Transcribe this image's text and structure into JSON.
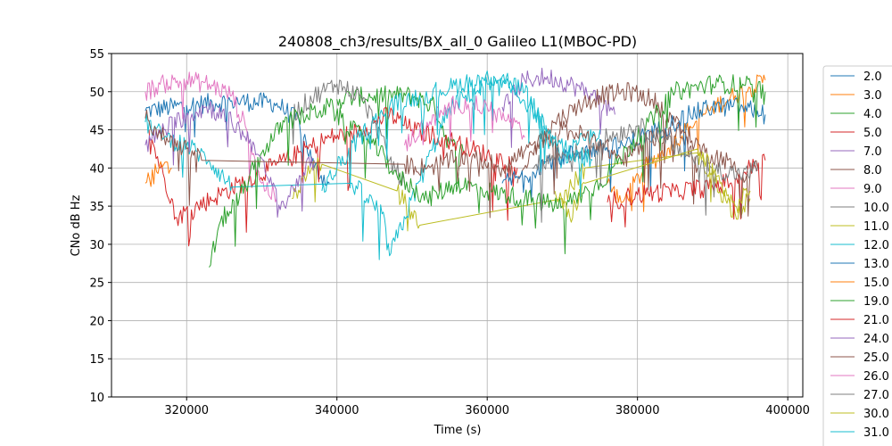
{
  "chart_data": {
    "type": "line",
    "title": "240808_ch3/results/BX_all_0 Galileo L1(MBOC-PD)",
    "xlabel": "Time (s)",
    "ylabel": "CNo dB Hz",
    "xlim": [
      310000,
      402000
    ],
    "ylim": [
      10,
      55
    ],
    "grid": true,
    "legend_placement": "right, outside plot (clipped)",
    "x_ticks": [
      320000,
      340000,
      360000,
      380000,
      400000
    ],
    "x_tick_labels": [
      "320000",
      "340000",
      "360000",
      "380000",
      "400000"
    ],
    "y_ticks": [
      10,
      15,
      20,
      25,
      30,
      35,
      40,
      45,
      50,
      55
    ],
    "y_tick_labels": [
      "10",
      "15",
      "20",
      "25",
      "30",
      "35",
      "40",
      "45",
      "50",
      "55"
    ],
    "series": [
      {
        "name": "2.0",
        "color": "#1f77b4",
        "points": [
          [
            314500,
            47.5
          ],
          [
            320000,
            48.2
          ],
          [
            326000,
            48.8
          ],
          [
            332000,
            48.5
          ],
          [
            335000,
            46.0
          ],
          [
            337000,
            40.0
          ],
          [
            339000,
            38.0
          ]
        ]
      },
      {
        "name": "3.0",
        "color": "#ff7f0e",
        "points": [
          [
            376000,
            38.0
          ],
          [
            378000,
            35.5
          ],
          [
            381000,
            40.0
          ],
          [
            384000,
            42.5
          ],
          [
            387000,
            45.5
          ],
          [
            390000,
            48.0
          ],
          [
            393000,
            49.5
          ],
          [
            395000,
            50.5
          ],
          [
            397000,
            51.5
          ]
        ]
      },
      {
        "name": "4.0",
        "color": "#2ca02c",
        "points": [
          [
            340000,
            49.0
          ],
          [
            345000,
            49.5
          ],
          [
            350000,
            49.5
          ],
          [
            353000,
            48.0
          ],
          [
            355000,
            43.0
          ],
          [
            357000,
            42.0
          ]
        ]
      },
      {
        "name": "5.0",
        "color": "#d62728",
        "points": [
          [
            315000,
            45.0
          ],
          [
            316500,
            40.0
          ],
          [
            318000,
            36.0
          ],
          [
            318500,
            33.5
          ],
          [
            339000,
            44.0
          ],
          [
            342000,
            44.5
          ],
          [
            345000,
            46.0
          ],
          [
            347000,
            47.0
          ],
          [
            350000,
            45.0
          ],
          [
            354000,
            44.0
          ],
          [
            358000,
            42.5
          ],
          [
            362000,
            41.0
          ],
          [
            364000,
            40.0
          ]
        ]
      },
      {
        "name": "7.0",
        "color": "#9467bd",
        "points": [
          [
            362000,
            48.0
          ],
          [
            365000,
            51.5
          ],
          [
            368000,
            52.0
          ],
          [
            371000,
            51.0
          ],
          [
            374000,
            49.5
          ],
          [
            377000,
            47.0
          ]
        ]
      },
      {
        "name": "8.0",
        "color": "#8c564b",
        "points": [
          [
            364000,
            38.0
          ],
          [
            366000,
            42.0
          ],
          [
            369000,
            46.0
          ],
          [
            372000,
            48.0
          ],
          [
            375000,
            49.5
          ],
          [
            379000,
            50.0
          ],
          [
            382000,
            49.0
          ],
          [
            385000,
            46.0
          ],
          [
            388000,
            40.0
          ]
        ]
      },
      {
        "name": "9.0",
        "color": "#e377c2",
        "points": [
          [
            314500,
            50.0
          ],
          [
            317000,
            51.0
          ],
          [
            320000,
            51.5
          ],
          [
            323000,
            51.0
          ],
          [
            326000,
            49.5
          ],
          [
            328000,
            45.0
          ],
          [
            330000,
            38.0
          ],
          [
            332000,
            36.0
          ]
        ]
      },
      {
        "name": "10.0",
        "color": "#7f7f7f",
        "points": [
          [
            334000,
            47.0
          ],
          [
            337000,
            49.5
          ],
          [
            340000,
            51.0
          ],
          [
            343000,
            49.5
          ],
          [
            345000,
            46.0
          ],
          [
            347000,
            41.0
          ],
          [
            349000,
            38.0
          ]
        ]
      },
      {
        "name": "11.0",
        "color": "#bcbd22",
        "points": [
          [
            334000,
            36.0
          ],
          [
            336000,
            39.0
          ],
          [
            338000,
            40.5
          ],
          [
            348000,
            37.0
          ],
          [
            351000,
            32.5
          ],
          [
            370000,
            36.0
          ],
          [
            373000,
            40.0
          ],
          [
            388000,
            42.0
          ],
          [
            391000,
            37.0
          ],
          [
            393000,
            34.0
          ],
          [
            395000,
            36.0
          ]
        ]
      },
      {
        "name": "12.0",
        "color": "#17becf",
        "points": [
          [
            314500,
            46.0
          ],
          [
            317000,
            44.0
          ],
          [
            320000,
            43.0
          ],
          [
            323000,
            41.0
          ],
          [
            326000,
            37.5
          ],
          [
            342000,
            38.0
          ],
          [
            346000,
            34.0
          ],
          [
            347000,
            28.5
          ],
          [
            355000,
            48.0
          ],
          [
            360000,
            51.0
          ],
          [
            363000,
            50.5
          ],
          [
            366000,
            48.0
          ],
          [
            368000,
            44.0
          ],
          [
            370000,
            41.0
          ],
          [
            372000,
            43.0
          ],
          [
            375000,
            45.0
          ]
        ]
      },
      {
        "name": "13.0",
        "color": "#1f77b4",
        "points": [
          [
            362000,
            38.0
          ],
          [
            365000,
            39.0
          ],
          [
            368000,
            41.0
          ],
          [
            372000,
            42.0
          ],
          [
            378000,
            43.0
          ],
          [
            383000,
            45.0
          ],
          [
            387000,
            47.0
          ],
          [
            390000,
            48.0
          ],
          [
            394000,
            48.0
          ],
          [
            397000,
            47.0
          ]
        ]
      },
      {
        "name": "15.0",
        "color": "#ff7f0e",
        "points": [
          [
            314500,
            38.0
          ],
          [
            316000,
            39.5
          ],
          [
            318000,
            40.0
          ]
        ]
      },
      {
        "name": "19.0",
        "color": "#2ca02c",
        "points": [
          [
            323000,
            27.0
          ],
          [
            324500,
            33.0
          ],
          [
            327000,
            36.0
          ],
          [
            330000,
            42.0
          ],
          [
            333000,
            46.0
          ],
          [
            336000,
            47.0
          ],
          [
            339000,
            48.0
          ],
          [
            342000,
            45.0
          ],
          [
            345000,
            43.0
          ],
          [
            348000,
            39.0
          ],
          [
            352000,
            36.0
          ],
          [
            356000,
            38.0
          ],
          [
            360000,
            37.0
          ],
          [
            365000,
            36.0
          ],
          [
            370000,
            35.0
          ],
          [
            375000,
            38.0
          ],
          [
            380000,
            44.0
          ],
          [
            385000,
            50.0
          ],
          [
            390000,
            51.0
          ],
          [
            394000,
            51.0
          ],
          [
            397000,
            50.0
          ]
        ]
      },
      {
        "name": "21.0",
        "color": "#d62728",
        "points": [
          [
            376000,
            35.5
          ],
          [
            380000,
            36.5
          ],
          [
            385000,
            37.0
          ],
          [
            390000,
            37.5
          ],
          [
            393000,
            38.5
          ],
          [
            395000,
            40.0
          ],
          [
            397000,
            41.0
          ]
        ]
      },
      {
        "name": "24.0",
        "color": "#9467bd",
        "points": [
          [
            314500,
            43.0
          ],
          [
            317000,
            45.0
          ],
          [
            320000,
            47.0
          ],
          [
            323000,
            48.0
          ],
          [
            326000,
            46.0
          ],
          [
            329000,
            43.0
          ],
          [
            331000,
            38.0
          ],
          [
            333000,
            35.0
          ],
          [
            335000,
            39.0
          ],
          [
            337000,
            41.0
          ]
        ]
      },
      {
        "name": "25.0",
        "color": "#8c564b",
        "points": [
          [
            314500,
            46.5
          ],
          [
            317000,
            44.0
          ],
          [
            320000,
            42.5
          ],
          [
            322000,
            41.0
          ],
          [
            349000,
            40.5
          ],
          [
            352000,
            40.0
          ],
          [
            355000,
            41.0
          ],
          [
            358000,
            41.5
          ],
          [
            362000,
            40.0
          ],
          [
            366000,
            43.0
          ],
          [
            370000,
            45.0
          ],
          [
            374000,
            44.0
          ],
          [
            378000,
            41.0
          ],
          [
            382000,
            44.0
          ],
          [
            386000,
            45.0
          ],
          [
            389000,
            42.0
          ],
          [
            392000,
            41.0
          ],
          [
            394000,
            39.0
          ],
          [
            396000,
            40.0
          ]
        ]
      },
      {
        "name": "26.0",
        "color": "#e377c2",
        "points": [
          [
            349000,
            43.0
          ],
          [
            352000,
            46.0
          ],
          [
            356000,
            48.5
          ],
          [
            360000,
            48.0
          ],
          [
            363000,
            46.0
          ],
          [
            365000,
            44.0
          ]
        ]
      },
      {
        "name": "27.0",
        "color": "#7f7f7f",
        "points": [
          [
            366000,
            40.0
          ],
          [
            369000,
            41.5
          ],
          [
            372000,
            42.0
          ],
          [
            376000,
            44.0
          ],
          [
            380000,
            45.5
          ],
          [
            383000,
            44.0
          ],
          [
            386000,
            42.0
          ],
          [
            390000,
            40.0
          ],
          [
            394000,
            39.0
          ],
          [
            396000,
            40.0
          ]
        ]
      },
      {
        "name": "30.0",
        "color": "#bcbd22",
        "points": [
          [
            369000,
            37.0
          ],
          [
            371000,
            33.5
          ],
          [
            373000,
            38.0
          ],
          [
            388000,
            42.5
          ],
          [
            391000,
            38.0
          ],
          [
            393000,
            35.0
          ],
          [
            395000,
            37.0
          ]
        ]
      },
      {
        "name": "31.0",
        "color": "#17becf",
        "points": [
          [
            338000,
            37.0
          ],
          [
            340000,
            40.0
          ],
          [
            343000,
            44.0
          ],
          [
            347000,
            48.0
          ],
          [
            351000,
            49.5
          ],
          [
            355000,
            50.5
          ],
          [
            358000,
            51.5
          ],
          [
            362000,
            52.0
          ],
          [
            365000,
            50.0
          ],
          [
            368000,
            45.0
          ],
          [
            371000,
            42.0
          ],
          [
            374000,
            41.0
          ]
        ]
      }
    ]
  }
}
